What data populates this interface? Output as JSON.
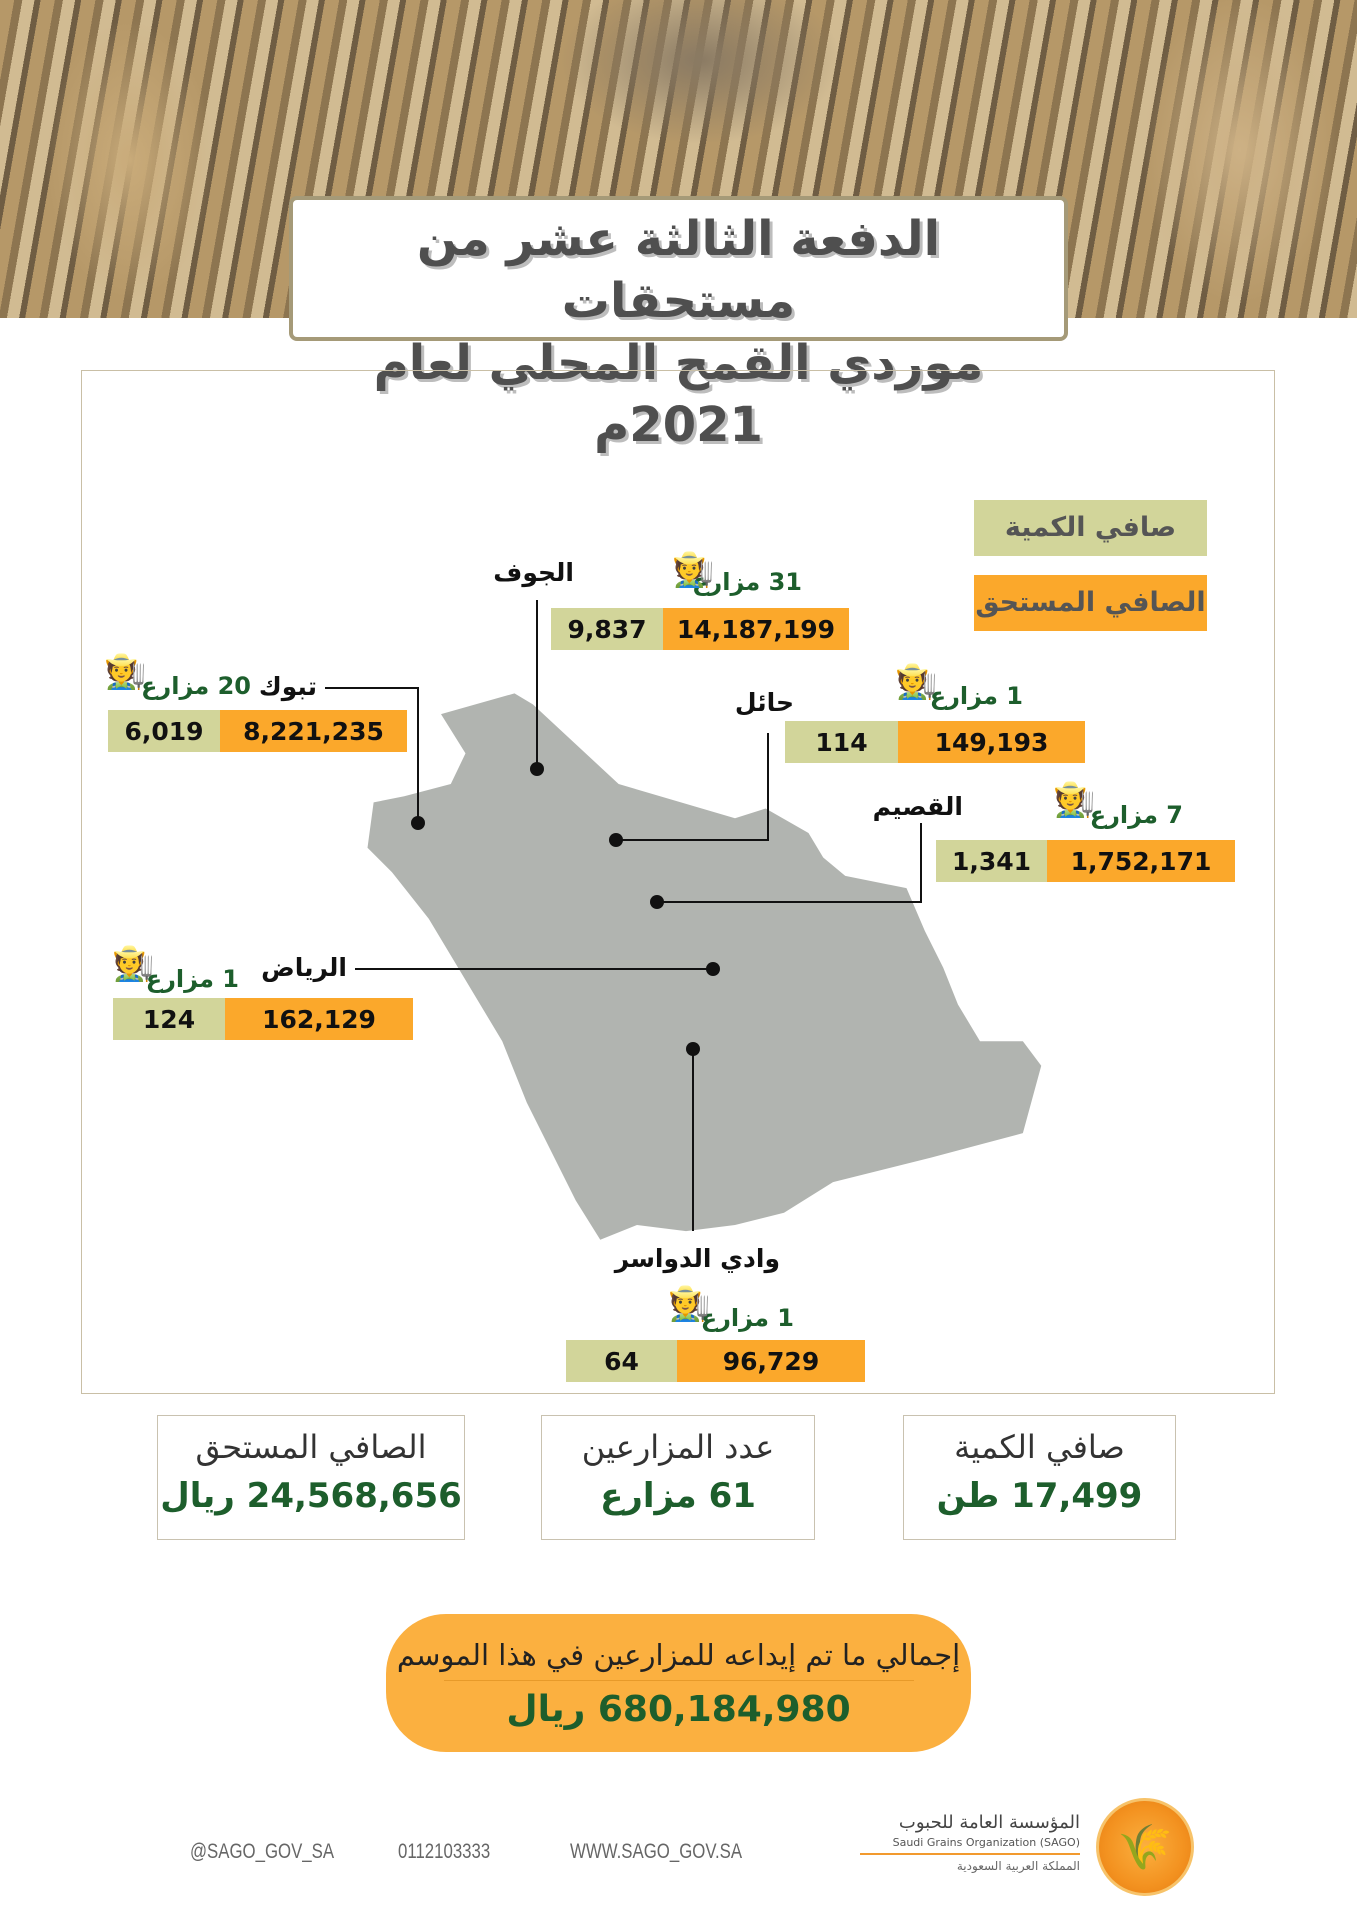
{
  "title": {
    "line1": "الدفعة الثالثة عشر من مستحقات",
    "line2": "موردي القمح المحلي لعام 2021م"
  },
  "legend": {
    "quantity": "صافي الكمية",
    "due": "الصافي المستحق",
    "colors": {
      "quantity": "#d2d59a",
      "due": "#fba82b"
    }
  },
  "regions": [
    {
      "name": "الجوف",
      "farmers": "31 مزارع",
      "quantity": "9,837",
      "due": "14,187,199"
    },
    {
      "name": "تبوك",
      "farmers": "20 مزارع",
      "quantity": "6,019",
      "due": "8,221,235"
    },
    {
      "name": "حائل",
      "farmers": "1 مزارع",
      "quantity": "114",
      "due": "149,193"
    },
    {
      "name": "القصيم",
      "farmers": "7 مزارع",
      "quantity": "1,341",
      "due": "1,752,171"
    },
    {
      "name": "الرياض",
      "farmers": "1 مزارع",
      "quantity": "124",
      "due": "162,129"
    },
    {
      "name": "وادي الدواسر",
      "farmers": "1 مزارع",
      "quantity": "64",
      "due": "96,729"
    }
  ],
  "summary": {
    "net_due": {
      "label": "الصافي المستحق",
      "value": "24,568,656 ريال"
    },
    "farmers": {
      "label": "عدد المزارعين",
      "value": "61 مزارع"
    },
    "quantity": {
      "label": "صافي الكمية",
      "value": "17,499 طن"
    }
  },
  "total": {
    "label": "إجمالي ما تم إيداعه للمزارعين في هذا الموسم",
    "value": "680,184,980 ريال"
  },
  "footer": {
    "twitter": "@SAGO_GOV_SA",
    "phone": "0112103333",
    "website": "WWW.SAGO_GOV.SA"
  },
  "logo": {
    "ar": "المؤسسة العامة للحبوب",
    "en": "Saudi Grains Organization (SAGO)",
    "country": "المملكة العربية السعودية"
  },
  "icons": {
    "farmer": "farmer-icon"
  }
}
